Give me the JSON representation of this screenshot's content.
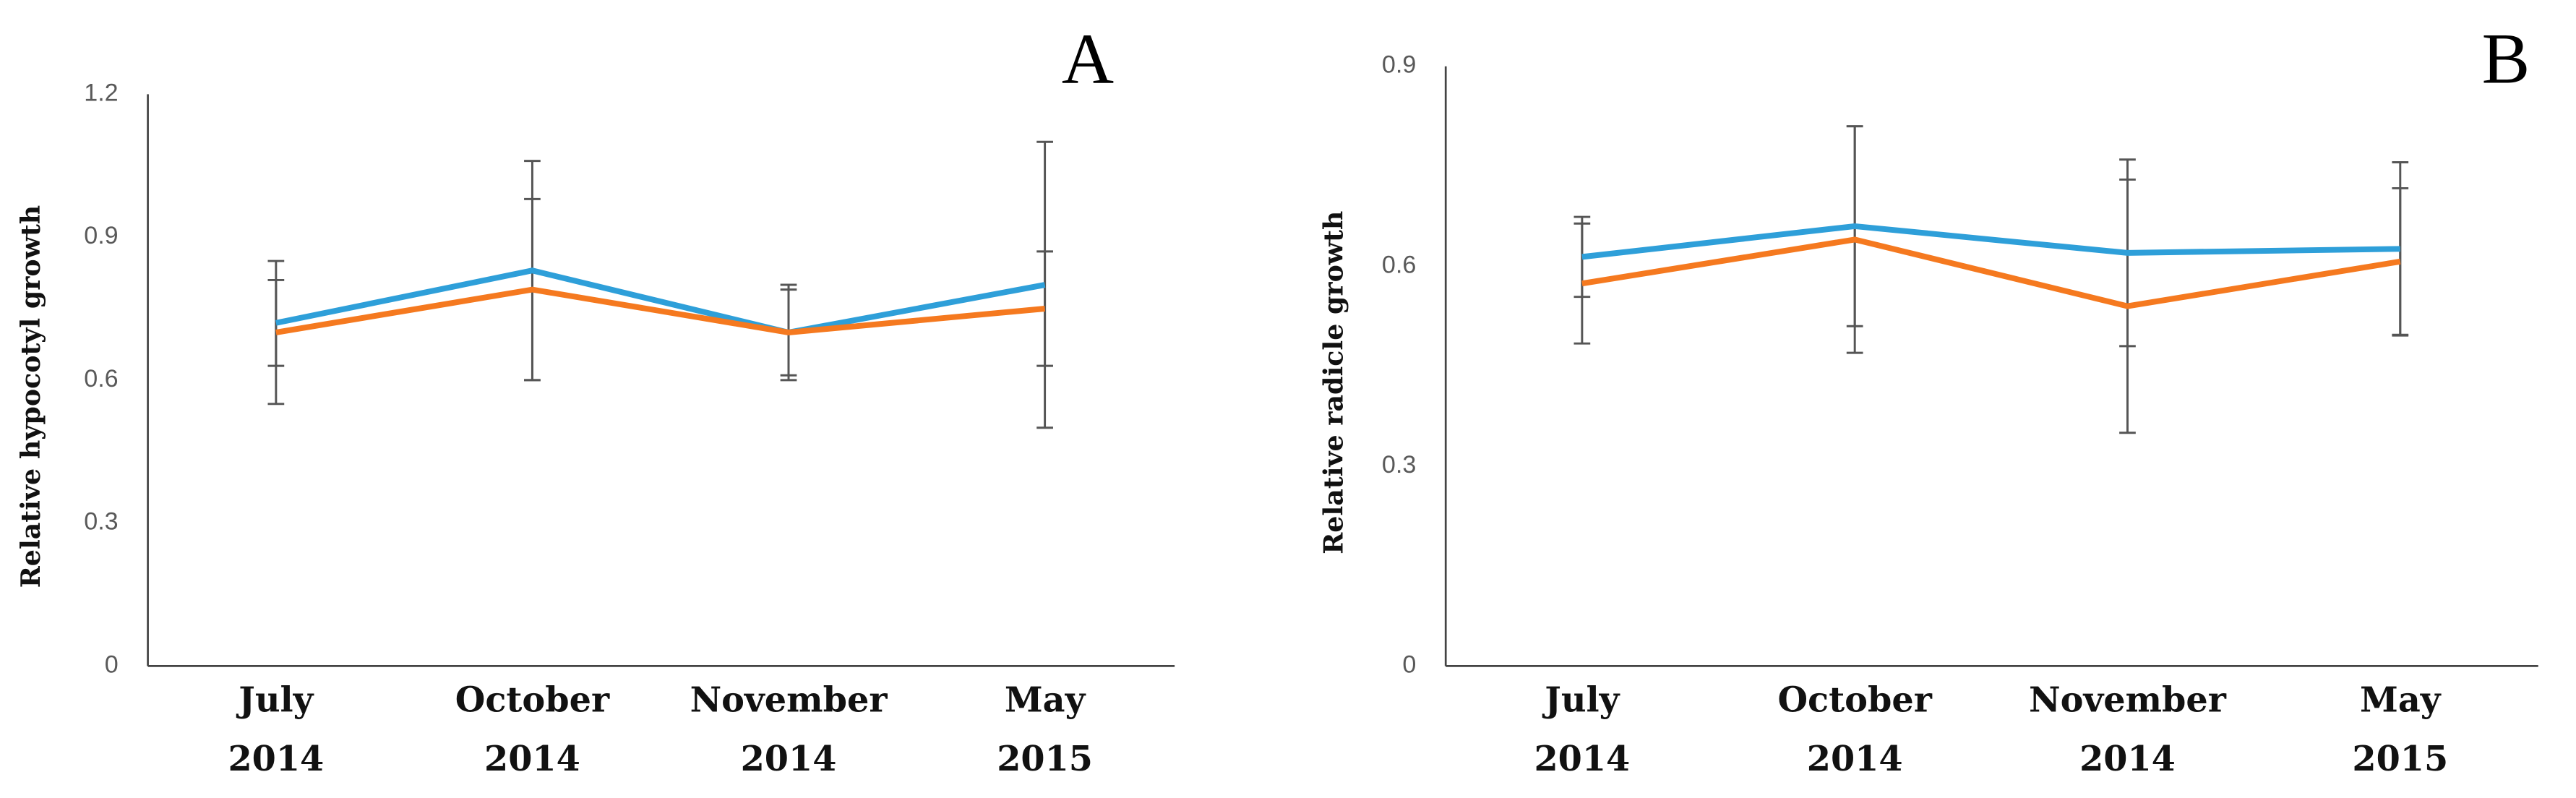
{
  "chart_data": [
    {
      "type": "line",
      "panel_label": "A",
      "y_label": "Relative hypocotyl growth",
      "categories": [
        "July 2014",
        "October 2014",
        "November 2014",
        "May 2015"
      ],
      "series": [
        {
          "color": "#2e9fd9",
          "values": [
            0.72,
            0.83,
            0.7,
            0.8
          ],
          "errors": [
            0.09,
            0.23,
            0.1,
            0.3
          ]
        },
        {
          "color": "#f5791f",
          "values": [
            0.7,
            0.79,
            0.7,
            0.75
          ],
          "errors": [
            0.15,
            0.19,
            0.09,
            0.12
          ]
        }
      ],
      "ylim": [
        0,
        1.2
      ],
      "yticks": [
        0,
        0.3,
        0.6,
        0.9,
        1.2
      ]
    },
    {
      "type": "line",
      "panel_label": "B",
      "y_label": "Relative radicle growth",
      "categories": [
        "July 2014",
        "October 2014",
        "November 2014",
        "May 2015"
      ],
      "series": [
        {
          "color": "#2e9fd9",
          "values": [
            0.614,
            0.66,
            0.62,
            0.626
          ],
          "errors": [
            0.06,
            0.15,
            0.14,
            0.13
          ]
        },
        {
          "color": "#f5791f",
          "values": [
            0.574,
            0.64,
            0.54,
            0.607
          ],
          "errors": [
            0.09,
            0.17,
            0.19,
            0.11
          ]
        }
      ],
      "ylim": [
        0,
        0.9
      ],
      "yticks": [
        0,
        0.3,
        0.6,
        0.9
      ]
    }
  ]
}
